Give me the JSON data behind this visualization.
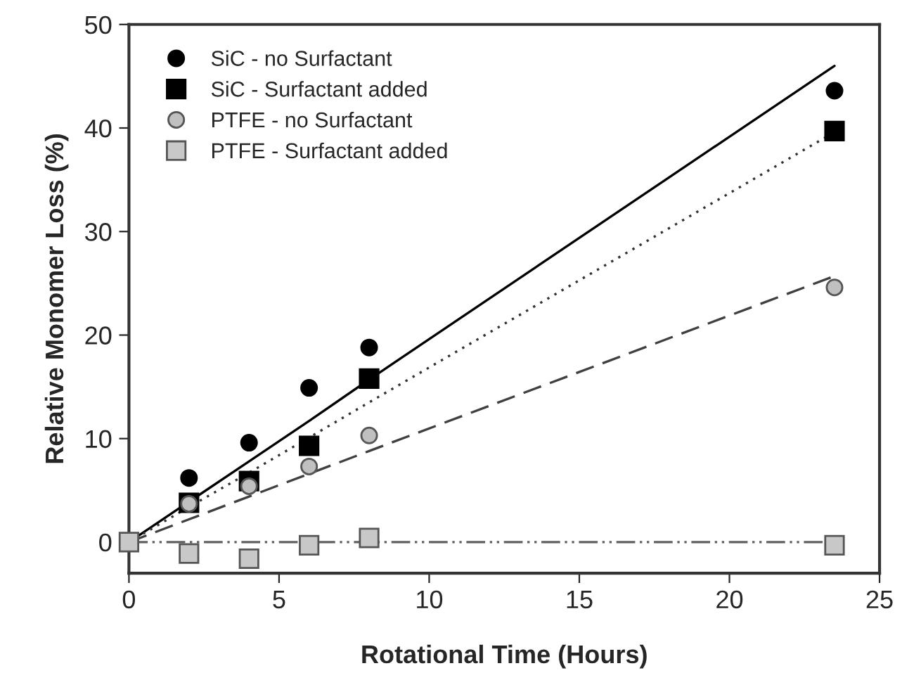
{
  "chart_data": {
    "type": "scatter",
    "xlabel": "Rotational Time (Hours)",
    "ylabel": "Relative Monomer Loss (%)",
    "xlim": [
      0,
      25
    ],
    "ylim": [
      -3,
      50
    ],
    "xticks": [
      0,
      5,
      10,
      15,
      20,
      25
    ],
    "yticks": [
      0,
      10,
      20,
      30,
      40,
      50
    ],
    "grid": false,
    "legend": "top left",
    "x": [
      0,
      2,
      4,
      6,
      8,
      23.5
    ],
    "series": [
      {
        "name": "SiC - no Surfactant",
        "color": "#000000",
        "marker": "circle",
        "values": [
          null,
          6.2,
          9.6,
          14.9,
          18.8,
          43.6
        ]
      },
      {
        "name": "SiC - Surfactant added",
        "color": "#000000",
        "marker": "square",
        "values": [
          null,
          3.8,
          5.9,
          9.3,
          15.8,
          39.7
        ]
      },
      {
        "name": "PTFE - no Surfactant",
        "color": "#c0c0c0",
        "marker": "circle",
        "values": [
          null,
          3.7,
          5.4,
          7.3,
          10.3,
          24.6
        ]
      },
      {
        "name": "PTFE - Surfactant added",
        "color": "#c8c8c8",
        "marker": "square",
        "values": [
          0,
          -1.1,
          -1.6,
          -0.3,
          0.4,
          -0.3
        ]
      },
      {
        "type": "line",
        "color": "#000000",
        "line_style": "solid",
        "values": [
          0,
          3.9,
          7.8,
          11.7,
          15.7,
          46.0
        ]
      },
      {
        "type": "line",
        "color": "#333333",
        "line_style": "dotted",
        "values": [
          0,
          3.4,
          6.7,
          10.1,
          13.5,
          39.6
        ]
      },
      {
        "type": "line",
        "color": "#404040",
        "line_style": "dashed",
        "values": [
          0,
          2.2,
          4.4,
          6.6,
          8.8,
          25.7
        ]
      },
      {
        "type": "line",
        "color": "#606060",
        "line_style": "dashdot",
        "values": [
          0,
          0,
          0,
          0,
          0,
          0
        ]
      }
    ]
  }
}
